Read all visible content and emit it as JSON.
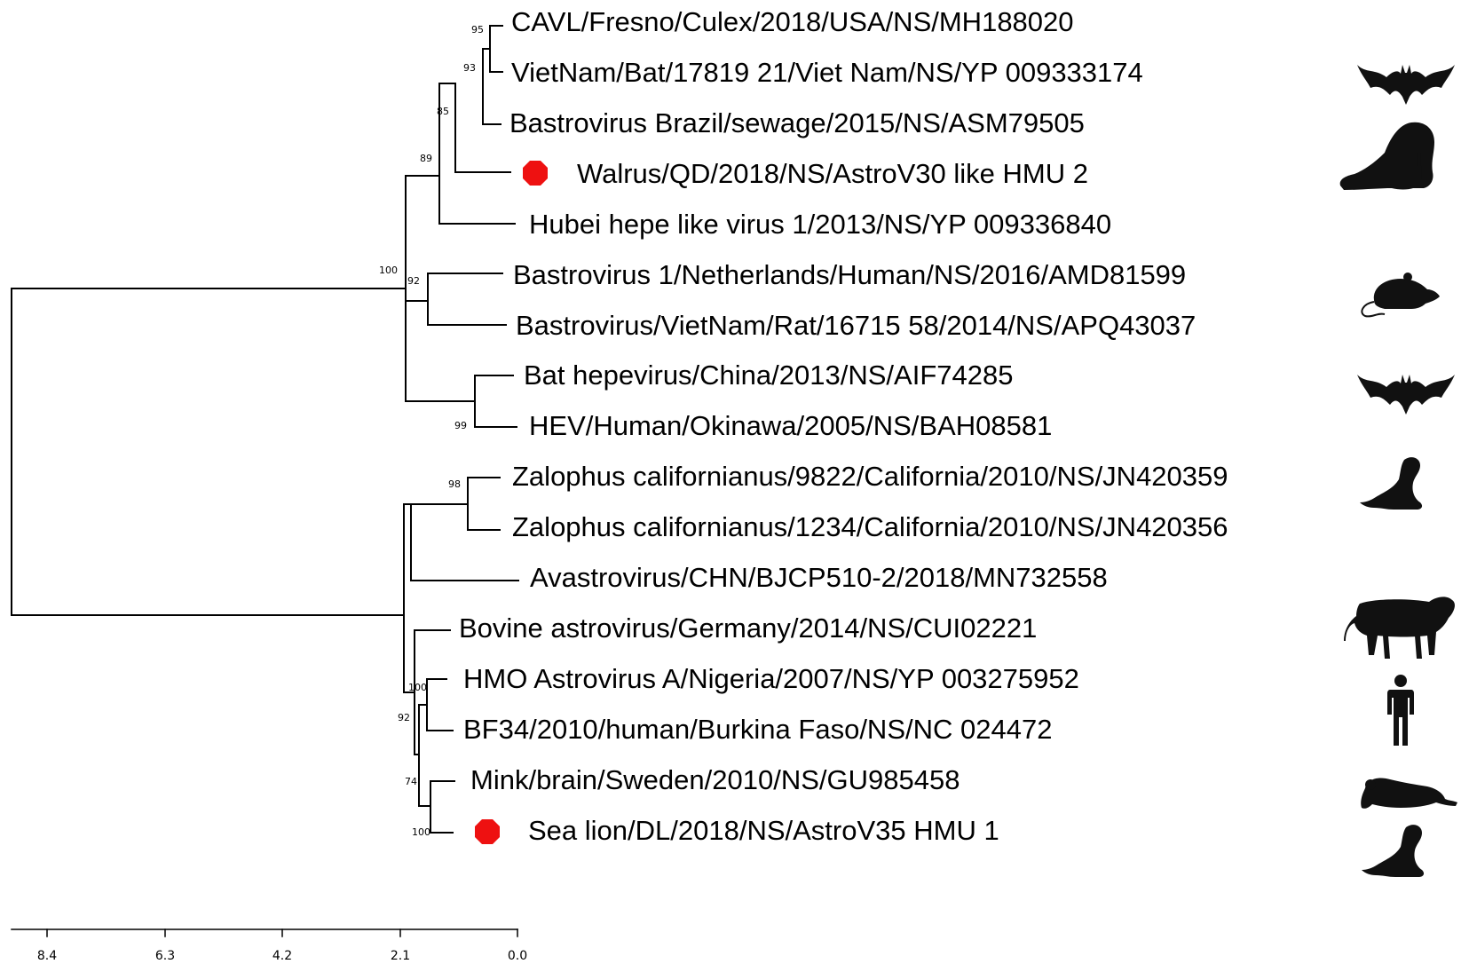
{
  "tree": {
    "taxa": [
      "CAVL/Fresno/Culex/2018/USA/NS/MH188020",
      "VietNam/Bat/17819 21/Viet Nam/NS/YP 009333174",
      "Bastrovirus Brazil/sewage/2015/NS/ASM79505",
      "Walrus/QD/2018/NS/AstroV30 like HMU 2",
      "Hubei hepe like virus 1/2013/NS/YP 009336840",
      "Bastrovirus 1/Netherlands/Human/NS/2016/AMD81599",
      "Bastrovirus/VietNam/Rat/16715 58/2014/NS/APQ43037",
      "Bat hepevirus/China/2013/NS/AIF74285",
      "HEV/Human/Okinawa/2005/NS/BAH08581",
      "Zalophus californianus/9822/California/2010/NS/JN420359",
      "Zalophus californianus/1234/California/2010/NS/JN420356",
      "Avastrovirus/CHN/BJCP510-2/2018/MN732558",
      "Bovine astrovirus/Germany/2014/NS/CUI02221",
      "HMO Astrovirus A/Nigeria/2007/NS/YP 003275952",
      "BF34/2010/human/Burkina Faso/NS/NC 024472",
      "Mink/brain/Sweden/2010/NS/GU985458",
      "Sea lion/DL/2018/NS/AstroV35 HMU 1"
    ],
    "highlighted_taxa": [
      "Walrus/QD/2018/NS/AstroV30 like HMU 2",
      "Sea lion/DL/2018/NS/AstroV35 HMU 1"
    ],
    "highlight_color": "#ee1111",
    "bootstrap_values": [
      "95",
      "93",
      "85",
      "89",
      "100",
      "92",
      "99",
      "98",
      "100",
      "92",
      "74",
      "100"
    ],
    "scale_ticks": [
      "8.4",
      "6.3",
      "4.2",
      "2.1",
      "0.0"
    ]
  },
  "host_icons": [
    "bat-icon",
    "walrus-icon",
    "rat-icon",
    "bat-icon",
    "sea-lion-icon",
    "cow-icon",
    "human-icon",
    "mink-icon",
    "sea-lion-icon"
  ]
}
